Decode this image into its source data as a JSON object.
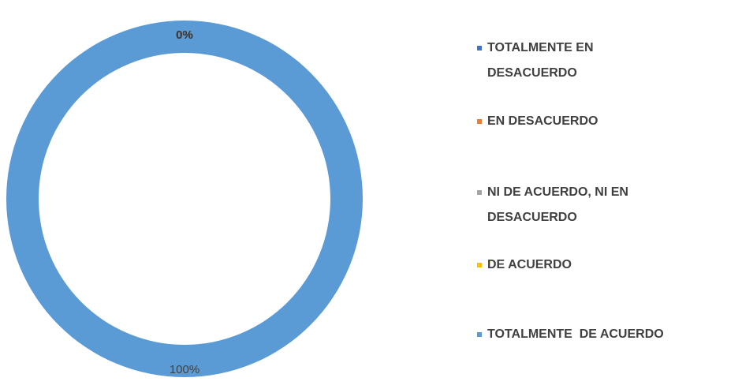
{
  "chart_data": {
    "type": "donut",
    "categories": [
      "TOTALMENTE EN DESACUERDO",
      "EN DESACUERDO",
      "NI DE ACUERDO, NI EN DESACUERDO",
      "DE ACUERDO",
      "TOTALMENTE  DE ACUERDO"
    ],
    "values": [
      0,
      0,
      0,
      0,
      100
    ],
    "value_labels": [
      "0%",
      "0%",
      "0%",
      "0%",
      "100%"
    ],
    "colors": [
      "#4472c4",
      "#ed7d31",
      "#a5a5a5",
      "#ffc000",
      "#5b9bd5"
    ],
    "legend": "right"
  }
}
